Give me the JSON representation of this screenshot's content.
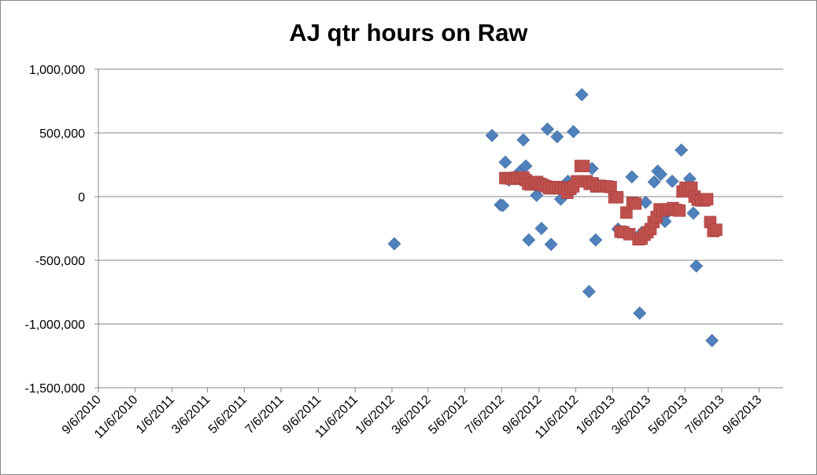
{
  "chart_data": {
    "type": "scatter",
    "title": "AJ qtr hours on Raw",
    "grid": "horizontal",
    "legend": "none",
    "ylim": [
      -1500000,
      1000000
    ],
    "xlim": [
      "2010-09-06",
      "2013-10-16"
    ],
    "y_ticks": [
      {
        "value": 1000000,
        "label": "1,000,000"
      },
      {
        "value": 500000,
        "label": "500,000"
      },
      {
        "value": 0,
        "label": "0"
      },
      {
        "value": -500000,
        "label": "-500,000"
      },
      {
        "value": -1000000,
        "label": "-1,000,000"
      },
      {
        "value": -1500000,
        "label": "-1,500,000"
      }
    ],
    "x_ticks": [
      {
        "date": "2010-09-06",
        "label": "9/6/2010"
      },
      {
        "date": "2010-11-06",
        "label": "11/6/2010"
      },
      {
        "date": "2011-01-06",
        "label": "1/6/2011"
      },
      {
        "date": "2011-03-06",
        "label": "3/6/2011"
      },
      {
        "date": "2011-05-06",
        "label": "5/6/2011"
      },
      {
        "date": "2011-07-06",
        "label": "7/6/2011"
      },
      {
        "date": "2011-09-06",
        "label": "9/6/2011"
      },
      {
        "date": "2011-11-06",
        "label": "11/6/2011"
      },
      {
        "date": "2012-01-06",
        "label": "1/6/2012"
      },
      {
        "date": "2012-03-06",
        "label": "3/6/2012"
      },
      {
        "date": "2012-05-06",
        "label": "5/6/2012"
      },
      {
        "date": "2012-07-06",
        "label": "7/6/2012"
      },
      {
        "date": "2012-09-06",
        "label": "9/6/2012"
      },
      {
        "date": "2012-11-06",
        "label": "11/6/2012"
      },
      {
        "date": "2013-01-06",
        "label": "1/6/2013"
      },
      {
        "date": "2013-03-06",
        "label": "3/6/2013"
      },
      {
        "date": "2013-05-06",
        "label": "5/6/2013"
      },
      {
        "date": "2013-07-06",
        "label": "7/6/2013"
      },
      {
        "date": "2013-09-06",
        "label": "9/6/2013"
      }
    ],
    "series": [
      {
        "marker": "diamond",
        "color": "#4F81BD",
        "points": [
          [
            "2012-01-10",
            -370000
          ],
          [
            "2012-06-20",
            480000
          ],
          [
            "2012-07-04",
            -65000
          ],
          [
            "2012-07-08",
            -70000
          ],
          [
            "2012-07-12",
            270000
          ],
          [
            "2012-07-18",
            130000
          ],
          [
            "2012-08-06",
            200000
          ],
          [
            "2012-08-11",
            445000
          ],
          [
            "2012-08-15",
            240000
          ],
          [
            "2012-08-20",
            -340000
          ],
          [
            "2012-09-02",
            10000
          ],
          [
            "2012-09-10",
            -250000
          ],
          [
            "2012-09-20",
            530000
          ],
          [
            "2012-09-26",
            -375000
          ],
          [
            "2012-10-06",
            470000
          ],
          [
            "2012-10-12",
            -20000
          ],
          [
            "2012-10-18",
            80000
          ],
          [
            "2012-10-24",
            120000
          ],
          [
            "2012-10-28",
            45000
          ],
          [
            "2012-11-02",
            510000
          ],
          [
            "2012-11-16",
            800000
          ],
          [
            "2012-11-28",
            -745000
          ],
          [
            "2012-12-03",
            220000
          ],
          [
            "2012-12-09",
            -340000
          ],
          [
            "2013-01-15",
            -255000
          ],
          [
            "2013-02-07",
            155000
          ],
          [
            "2013-02-20",
            -915000
          ],
          [
            "2013-02-24",
            -280000
          ],
          [
            "2013-03-02",
            -45000
          ],
          [
            "2013-03-16",
            115000
          ],
          [
            "2013-03-22",
            200000
          ],
          [
            "2013-03-27",
            175000
          ],
          [
            "2013-04-03",
            -195000
          ],
          [
            "2013-04-08",
            -120000
          ],
          [
            "2013-04-15",
            120000
          ],
          [
            "2013-04-30",
            365000
          ],
          [
            "2013-05-14",
            140000
          ],
          [
            "2013-05-20",
            -130000
          ],
          [
            "2013-05-25",
            -545000
          ],
          [
            "2013-06-20",
            -1130000
          ]
        ]
      },
      {
        "marker": "square",
        "color": "#C0504D",
        "points": [
          [
            "2012-07-12",
            145000
          ],
          [
            "2012-07-17",
            145000
          ],
          [
            "2012-07-22",
            140000
          ],
          [
            "2012-07-27",
            140000
          ],
          [
            "2012-08-01",
            150000
          ],
          [
            "2012-08-06",
            145000
          ],
          [
            "2012-08-11",
            150000
          ],
          [
            "2012-08-15",
            130000
          ],
          [
            "2012-08-19",
            100000
          ],
          [
            "2012-08-24",
            95000
          ],
          [
            "2012-08-29",
            110000
          ],
          [
            "2012-09-03",
            115000
          ],
          [
            "2012-09-08",
            100000
          ],
          [
            "2012-09-13",
            90000
          ],
          [
            "2012-09-18",
            80000
          ],
          [
            "2012-09-23",
            65000
          ],
          [
            "2012-09-28",
            75000
          ],
          [
            "2012-10-03",
            65000
          ],
          [
            "2012-10-08",
            75000
          ],
          [
            "2012-10-13",
            70000
          ],
          [
            "2012-10-18",
            60000
          ],
          [
            "2012-10-23",
            30000
          ],
          [
            "2012-10-28",
            60000
          ],
          [
            "2012-11-02",
            80000
          ],
          [
            "2012-11-08",
            120000
          ],
          [
            "2012-11-14",
            240000
          ],
          [
            "2012-11-19",
            240000
          ],
          [
            "2012-11-24",
            120000
          ],
          [
            "2012-11-29",
            100000
          ],
          [
            "2012-12-04",
            105000
          ],
          [
            "2012-12-10",
            80000
          ],
          [
            "2012-12-16",
            85000
          ],
          [
            "2012-12-22",
            80000
          ],
          [
            "2012-12-28",
            80000
          ],
          [
            "2013-01-03",
            75000
          ],
          [
            "2013-01-09",
            -5000
          ],
          [
            "2013-01-14",
            -5000
          ],
          [
            "2013-01-19",
            -275000
          ],
          [
            "2013-01-24",
            -280000
          ],
          [
            "2013-01-29",
            -125000
          ],
          [
            "2013-02-03",
            -295000
          ],
          [
            "2013-02-08",
            -50000
          ],
          [
            "2013-02-13",
            -55000
          ],
          [
            "2013-02-18",
            -335000
          ],
          [
            "2013-02-23",
            -330000
          ],
          [
            "2013-02-28",
            -300000
          ],
          [
            "2013-03-05",
            -280000
          ],
          [
            "2013-03-10",
            -255000
          ],
          [
            "2013-03-15",
            -200000
          ],
          [
            "2013-03-20",
            -160000
          ],
          [
            "2013-03-25",
            -100000
          ],
          [
            "2013-03-30",
            -110000
          ],
          [
            "2013-04-05",
            -100000
          ],
          [
            "2013-04-10",
            -100000
          ],
          [
            "2013-04-16",
            -90000
          ],
          [
            "2013-04-22",
            -105000
          ],
          [
            "2013-04-27",
            -110000
          ],
          [
            "2013-05-02",
            40000
          ],
          [
            "2013-05-07",
            70000
          ],
          [
            "2013-05-12",
            55000
          ],
          [
            "2013-05-17",
            70000
          ],
          [
            "2013-05-22",
            0
          ],
          [
            "2013-05-27",
            -25000
          ],
          [
            "2013-06-02",
            -30000
          ],
          [
            "2013-06-07",
            -30000
          ],
          [
            "2013-06-12",
            -20000
          ],
          [
            "2013-06-17",
            -200000
          ],
          [
            "2013-06-22",
            -270000
          ],
          [
            "2013-06-27",
            -260000
          ]
        ]
      }
    ]
  }
}
